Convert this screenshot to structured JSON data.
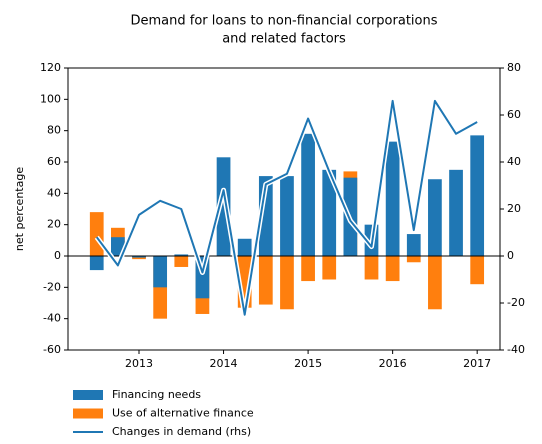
{
  "chart_data": {
    "type": "bar",
    "title": [
      "Demand for loans to non-financial corporations",
      "and related factors"
    ],
    "ylabel": "net percentage",
    "x": [
      2012.5,
      2012.75,
      2013,
      2013.25,
      2013.5,
      2013.75,
      2014,
      2014.25,
      2014.5,
      2014.75,
      2015,
      2015.25,
      2015.5,
      2015.75,
      2016,
      2016.25,
      2016.5,
      2016.75,
      2017
    ],
    "xlim": [
      2012.16,
      2017.27
    ],
    "xticks": [
      2013,
      2014,
      2015,
      2016,
      2017
    ],
    "ylim": [
      -60,
      120
    ],
    "yticks": [
      -60,
      -40,
      -20,
      0,
      20,
      40,
      60,
      80,
      100,
      120
    ],
    "y2lim": [
      -40,
      80
    ],
    "y2ticks": [
      -40,
      -20,
      0,
      20,
      40,
      60,
      80
    ],
    "legend": "below",
    "series": [
      {
        "name": "Financing needs",
        "type": "bar",
        "color": "#1f77b4",
        "values": [
          -9,
          12,
          -1,
          -20,
          1,
          -27,
          63,
          11,
          51,
          51,
          78,
          55,
          50,
          20,
          73,
          14,
          49,
          55,
          77
        ]
      },
      {
        "name": "Use of alternative finance",
        "type": "bar",
        "color": "#ff7f0e",
        "values": [
          28,
          18,
          -2,
          -40,
          -7,
          -37,
          0,
          -33,
          -31,
          -34,
          -16,
          -15,
          54,
          -15,
          -16,
          -4,
          -34,
          0,
          -18
        ]
      },
      {
        "name": "Changes in demand (rhs)",
        "type": "line",
        "axis": "y2",
        "color": "#1f77b4",
        "values": [
          8,
          -4,
          17.5,
          23.5,
          20,
          -7,
          28,
          -25,
          30.5,
          35,
          58.5,
          36,
          15,
          4,
          66,
          11,
          66,
          52,
          57
        ]
      }
    ]
  }
}
